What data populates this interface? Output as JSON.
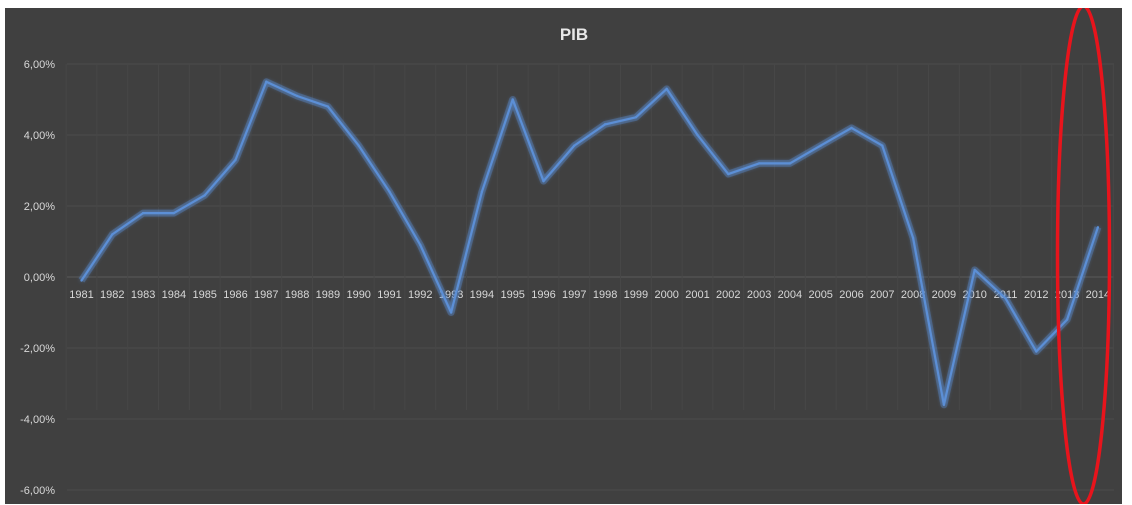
{
  "chart_data": {
    "type": "line",
    "title": "PIB",
    "xlabel": "",
    "ylabel": "",
    "categories": [
      "1981",
      "1982",
      "1983",
      "1984",
      "1985",
      "1986",
      "1987",
      "1988",
      "1989",
      "1990",
      "1991",
      "1992",
      "1993",
      "1994",
      "1995",
      "1996",
      "1997",
      "1998",
      "1999",
      "2000",
      "2001",
      "2002",
      "2003",
      "2004",
      "2005",
      "2006",
      "2007",
      "2008",
      "2009",
      "2010",
      "2011",
      "2012",
      "2013",
      "2014"
    ],
    "series": [
      {
        "values": [
          -0.1,
          1.2,
          1.8,
          1.8,
          2.3,
          3.3,
          5.5,
          5.1,
          4.8,
          3.7,
          2.4,
          0.9,
          -1.0,
          2.4,
          5.0,
          2.7,
          3.7,
          4.3,
          4.5,
          5.3,
          4.0,
          2.9,
          3.2,
          3.2,
          3.7,
          4.2,
          3.7,
          1.1,
          -3.6,
          0.2,
          -0.6,
          -2.1,
          -1.2,
          1.4
        ],
        "color": "#5b8fd6"
      }
    ],
    "ylim": [
      -6,
      6
    ],
    "y_ticks": [
      "6,00%",
      "4,00%",
      "2,00%",
      "0,00%",
      "-2,00%",
      "-4,00%",
      "-6,00%"
    ],
    "y_tick_values": [
      6,
      4,
      2,
      0,
      -2,
      -4,
      -6
    ],
    "grid": true,
    "background": "#404040",
    "annotation": {
      "type": "ellipse",
      "color": "#e8141c",
      "target": [
        "2013",
        "2014"
      ]
    }
  }
}
